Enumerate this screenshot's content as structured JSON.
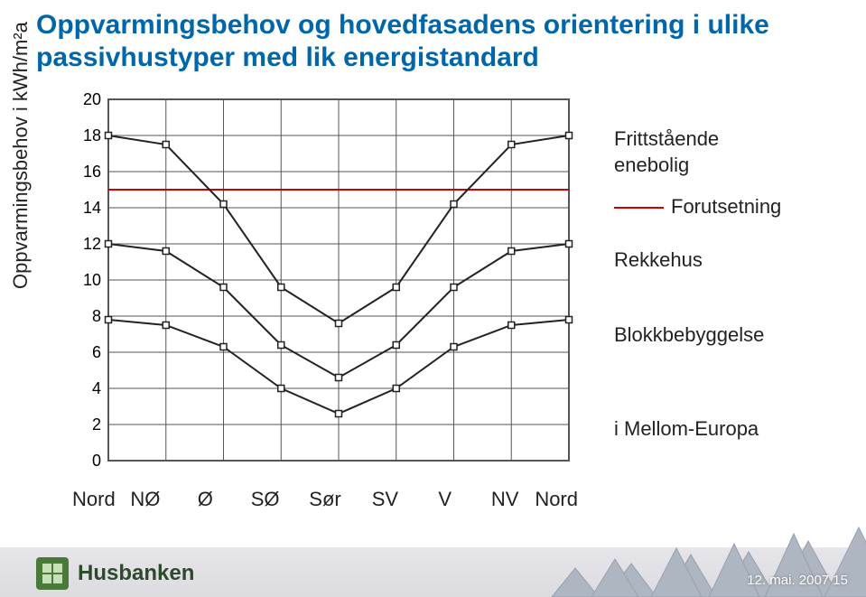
{
  "title": "Oppvarmingsbehov og hovedfasadens orientering i ulike passivhustyper med lik energistandard",
  "ylabel": "Oppvarmingsbehov i kWh/m²a",
  "chart": {
    "type": "line",
    "xlim": [
      0,
      8
    ],
    "ylim": [
      0,
      20
    ],
    "ytick_step": 2,
    "x_categories": [
      "Nord",
      "NØ",
      "Ø",
      "SØ",
      "Sør",
      "SV",
      "V",
      "NV",
      "Nord"
    ],
    "grid_color": "#555555",
    "bg_color": "#ffffff",
    "line_color": "#222222",
    "marker_border": "#222222",
    "marker_fill": "#ffffff",
    "marker_size": 7,
    "line_width": 2,
    "forutsetning_y": 15,
    "forutsetning_color": "#d00000",
    "series": [
      {
        "name": "Frittstående enebolig",
        "y": [
          18,
          17.5,
          14.2,
          9.6,
          7.6,
          9.6,
          14.2,
          17.5,
          18
        ]
      },
      {
        "name": "Rekkehus",
        "y": [
          12,
          11.6,
          9.6,
          6.4,
          4.6,
          6.4,
          9.6,
          11.6,
          12
        ]
      },
      {
        "name": "Blokkbebyggelse",
        "y": [
          7.8,
          7.5,
          6.3,
          4.0,
          2.6,
          4.0,
          6.3,
          7.5,
          7.8
        ]
      }
    ]
  },
  "legend": {
    "frittstaende_l1": "Frittstående",
    "frittstaende_l2": "enebolig",
    "forutsetning": "Forutsetning",
    "rekkehus": "Rekkehus",
    "blokk": "Blokkbebyggelse",
    "footnote": "i Mellom-Europa"
  },
  "footer": {
    "logo_text": "Husbanken",
    "stamp": "12. mai. 2007 15"
  }
}
